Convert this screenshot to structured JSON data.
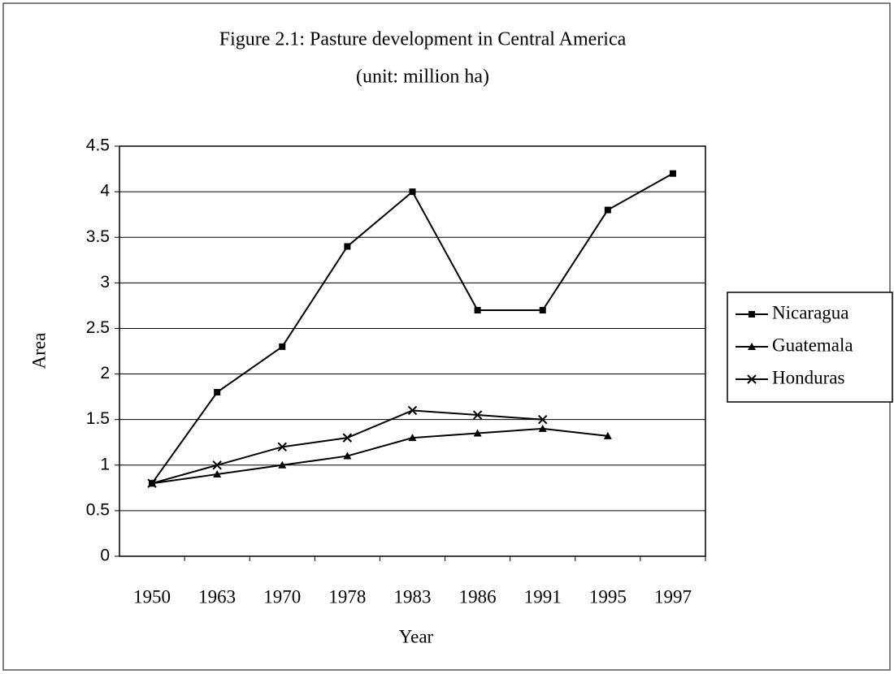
{
  "chart_data": {
    "type": "line",
    "title": "Figure 2.1: Pasture development in Central America",
    "subtitle": "(unit: million ha)",
    "x_label": "Year",
    "y_label": "Area",
    "categories": [
      "1950",
      "1963",
      "1970",
      "1978",
      "1983",
      "1986",
      "1991",
      "1995",
      "1997"
    ],
    "series": [
      {
        "name": "Nicaragua",
        "color": "#000000",
        "marker": "square",
        "values": [
          0.8,
          1.8,
          2.3,
          3.4,
          4.0,
          2.7,
          2.7,
          3.8,
          4.2
        ]
      },
      {
        "name": "Guatemala",
        "color": "#000000",
        "marker": "triangle",
        "values": [
          0.8,
          0.9,
          1.0,
          1.1,
          1.3,
          1.35,
          1.4,
          1.32,
          null
        ]
      },
      {
        "name": "Honduras",
        "color": "#000000",
        "marker": "x",
        "values": [
          0.8,
          1.0,
          1.2,
          1.3,
          1.6,
          1.55,
          1.5,
          null,
          null
        ]
      }
    ],
    "ylim": [
      0,
      4.5
    ],
    "yticks": [
      0,
      0.5,
      1,
      1.5,
      2,
      2.5,
      3,
      3.5,
      4,
      4.5
    ],
    "grid": true,
    "legend": "right"
  }
}
